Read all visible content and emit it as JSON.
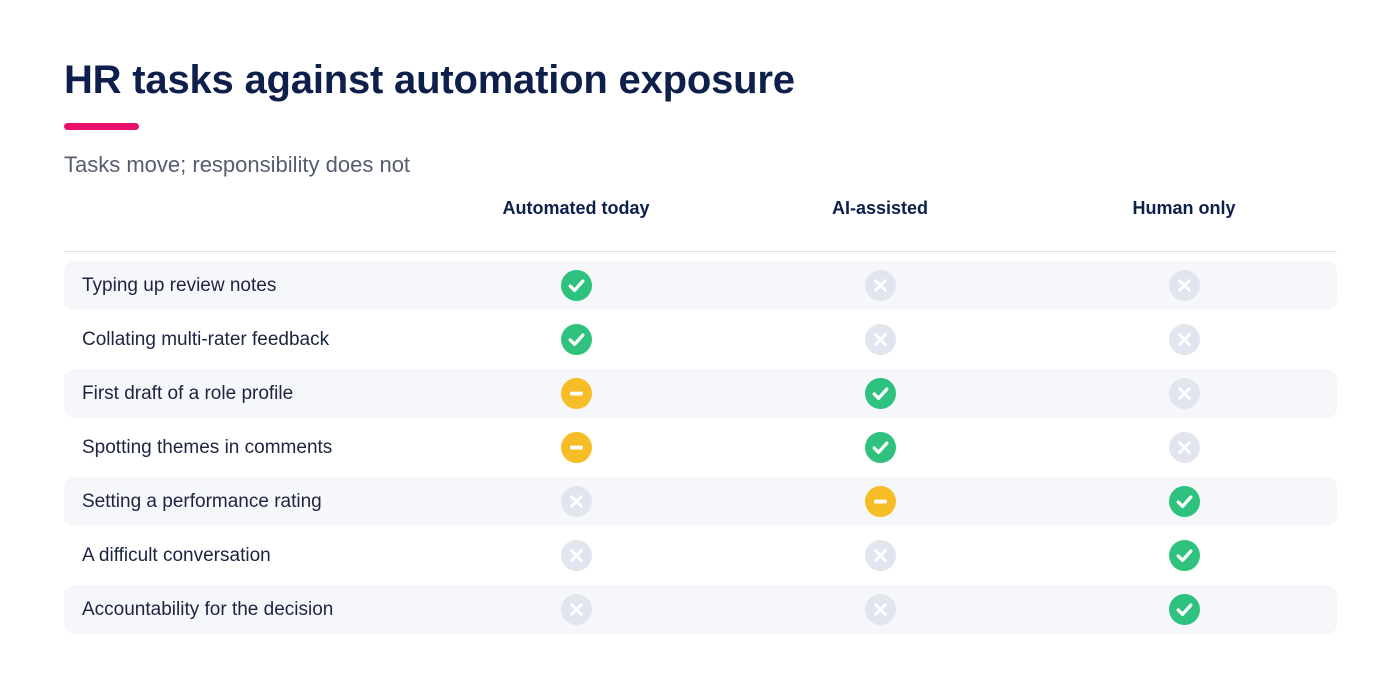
{
  "title": "HR tasks against automation exposure",
  "subtitle": "Tasks move; responsibility does not",
  "colors": {
    "accent": "#e8106a",
    "yes": "#2ec27e",
    "partial": "#f7bd26",
    "no": "#e3e5ee"
  },
  "columns": [
    "Automated today",
    "AI-assisted",
    "Human only"
  ],
  "rows": [
    {
      "label": "Typing up review notes",
      "statuses": [
        "yes",
        "no",
        "no"
      ]
    },
    {
      "label": "Collating multi-rater feedback",
      "statuses": [
        "yes",
        "no",
        "no"
      ]
    },
    {
      "label": "First draft of a role profile",
      "statuses": [
        "partial",
        "yes",
        "no"
      ]
    },
    {
      "label": "Spotting themes in comments",
      "statuses": [
        "partial",
        "yes",
        "no"
      ]
    },
    {
      "label": "Setting a performance rating",
      "statuses": [
        "no",
        "partial",
        "yes"
      ]
    },
    {
      "label": "A difficult conversation",
      "statuses": [
        "no",
        "no",
        "yes"
      ]
    },
    {
      "label": "Accountability for the decision",
      "statuses": [
        "no",
        "no",
        "yes"
      ]
    }
  ],
  "icons": {
    "yes": "check-circle-icon",
    "partial": "minus-circle-icon",
    "no": "x-circle-icon"
  }
}
